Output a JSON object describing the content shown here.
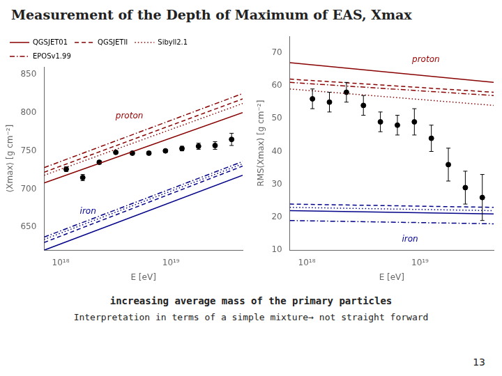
{
  "title": "Measurement of the Depth of Maximum of EAS, Xmax",
  "subtitle": [
    "increasing average mass of the primary particles",
    "Interpretation in terms of a simple mixture→ not straight forward"
  ],
  "annotations": [
    "13"
  ],
  "chart_data": [
    {
      "type": "line",
      "xlabel": "E [eV]",
      "ylabel": "⟨Xmax⟩ [g cm⁻²]",
      "log": "x",
      "xlim": [
        7.079457844e+17,
        4.466835922e+19
      ],
      "xticks": [
        {
          "value": 1e+18,
          "label": "10¹⁸"
        },
        {
          "value": 1e+19,
          "label": "10¹⁹"
        }
      ],
      "ylim": [
        620,
        860
      ],
      "yticks": [
        650,
        700,
        750,
        800,
        850
      ],
      "grid": false,
      "legend": "upper left",
      "series": [
        {
          "name": "QGSJET01",
          "type": "line",
          "color": "#880000",
          "line_style": "solid",
          "x": [
            7.079457844e+17,
            4.466835922e+19
          ],
          "values": [
            708,
            800
          ]
        },
        {
          "name": "QGSJET01",
          "type": "line",
          "color": "#000088",
          "line_style": "solid",
          "x": [
            7.079457844e+17,
            4.466835922e+19
          ],
          "values": [
            620,
            718
          ]
        },
        {
          "name": "QGSJETII",
          "type": "line",
          "color": "#880000",
          "line_style": "dashed",
          "x": [
            7.079457844e+17,
            4.466835922e+19
          ],
          "values": [
            722,
            818
          ]
        },
        {
          "name": "QGSJETII",
          "type": "line",
          "color": "#000088",
          "line_style": "dashed",
          "x": [
            7.079457844e+17,
            4.466835922e+19
          ],
          "values": [
            630,
            730
          ]
        },
        {
          "name": "Sibyll2.1",
          "type": "line",
          "color": "#880000",
          "line_style": "dotted",
          "x": [
            7.079457844e+17,
            4.466835922e+19
          ],
          "values": [
            718,
            812
          ]
        },
        {
          "name": "Sibyll2.1",
          "type": "line",
          "color": "#000088",
          "line_style": "dotted",
          "x": [
            7.079457844e+17,
            4.466835922e+19
          ],
          "values": [
            634,
            733
          ]
        },
        {
          "name": "EPOSv1.99",
          "type": "line",
          "color": "#880000",
          "line_style": "dashdot",
          "x": [
            7.079457844e+17,
            4.466835922e+19
          ],
          "values": [
            728,
            825
          ]
        },
        {
          "name": "EPOSv1.99",
          "type": "line",
          "color": "#000088",
          "line_style": "dashdot",
          "x": [
            7.079457844e+17,
            4.466835922e+19
          ],
          "values": [
            637,
            736
          ]
        },
        {
          "type": "scatter",
          "color": "#000000",
          "marker": "circle",
          "x": [
            1.122018454e+18,
            1.584893192e+18,
            2.238721139e+18,
            3.16227766e+18,
            4.466835922e+18,
            6.309573445e+18,
            8.912509381e+18,
            1.258925412e+19,
            1.77827941e+19,
            2.511886432e+19,
            3.548133892e+19
          ],
          "values": [
            726,
            715,
            735,
            748,
            747,
            747,
            750,
            753,
            756,
            757,
            765
          ],
          "errors": [
            3,
            4,
            2,
            2,
            2,
            2,
            2,
            3,
            4,
            5,
            8
          ]
        }
      ],
      "annotations": [
        {
          "text": "proton",
          "color": "#990000"
        },
        {
          "text": "iron",
          "color": "#000099"
        }
      ]
    },
    {
      "type": "line",
      "xlabel": "E [eV]",
      "ylabel": "RMS(Xmax) [g cm⁻²]",
      "log": "x",
      "xlim": [
        7.079457844e+17,
        4.466835922e+19
      ],
      "xticks": [
        {
          "value": 1e+18,
          "label": "10¹⁸"
        },
        {
          "value": 1e+19,
          "label": "10¹⁹"
        }
      ],
      "ylim": [
        10,
        75
      ],
      "yticks": [
        10,
        20,
        30,
        40,
        50,
        60,
        70
      ],
      "grid": false,
      "legend": false,
      "series": [
        {
          "type": "line",
          "color": "#880000",
          "line_style": "solid",
          "x": [
            7.079457844e+17,
            4.466835922e+19
          ],
          "values": [
            67,
            61
          ]
        },
        {
          "type": "line",
          "color": "#000088",
          "line_style": "solid",
          "x": [
            7.079457844e+17,
            4.466835922e+19
          ],
          "values": [
            22,
            21
          ]
        },
        {
          "type": "line",
          "color": "#880000",
          "line_style": "dashed",
          "x": [
            7.079457844e+17,
            4.466835922e+19
          ],
          "values": [
            62,
            58
          ]
        },
        {
          "type": "line",
          "color": "#000088",
          "line_style": "dashed",
          "x": [
            7.079457844e+17,
            4.466835922e+19
          ],
          "values": [
            24,
            23
          ]
        },
        {
          "type": "line",
          "color": "#880000",
          "line_style": "dotted",
          "x": [
            7.079457844e+17,
            4.466835922e+19
          ],
          "values": [
            59,
            54
          ]
        },
        {
          "type": "line",
          "color": "#000088",
          "line_style": "dotted",
          "x": [
            7.079457844e+17,
            4.466835922e+19
          ],
          "values": [
            23,
            22
          ]
        },
        {
          "type": "line",
          "color": "#880000",
          "line_style": "dashdot",
          "x": [
            7.079457844e+17,
            4.466835922e+19
          ],
          "values": [
            61,
            57
          ]
        },
        {
          "type": "line",
          "color": "#000088",
          "line_style": "dashdot",
          "x": [
            7.079457844e+17,
            4.466835922e+19
          ],
          "values": [
            19,
            18
          ]
        },
        {
          "type": "scatter",
          "color": "#000000",
          "marker": "circle",
          "x": [
            1.122018454e+18,
            1.584893192e+18,
            2.238721139e+18,
            3.16227766e+18,
            4.466835922e+18,
            6.309573445e+18,
            8.912509381e+18,
            1.258925412e+19,
            1.77827941e+19,
            2.511886432e+19,
            3.548133892e+19
          ],
          "values": [
            56,
            55,
            58,
            54,
            49,
            48,
            49,
            44,
            36,
            29,
            26
          ],
          "errors": [
            3,
            3,
            3,
            3,
            3,
            3,
            4,
            4,
            5,
            5,
            7
          ]
        }
      ],
      "annotations": [
        {
          "text": "proton",
          "color": "#990000"
        },
        {
          "text": "iron",
          "color": "#000099"
        }
      ]
    }
  ]
}
